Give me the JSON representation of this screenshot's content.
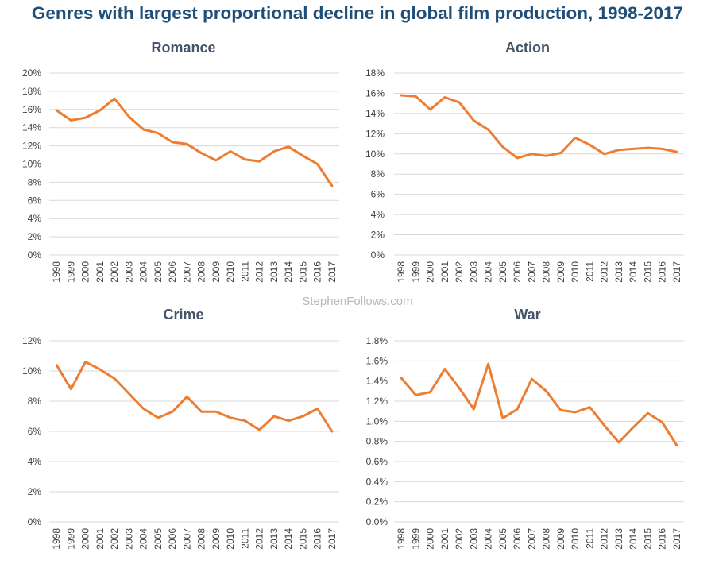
{
  "title": "Genres with largest proportional decline in global film production, 1998-2017",
  "watermark": "StephenFollows.com",
  "colors": {
    "title": "#1f4e79",
    "line": "#ed7d31",
    "grid": "#d9d9d9",
    "panel_title": "#44546a"
  },
  "chart_data": [
    {
      "type": "line",
      "title": "Romance",
      "categories": [
        "1998",
        "1999",
        "2000",
        "2001",
        "2002",
        "2003",
        "2004",
        "2005",
        "2006",
        "2007",
        "2008",
        "2009",
        "2010",
        "2011",
        "2012",
        "2013",
        "2014",
        "2015",
        "2016",
        "2017"
      ],
      "series": [
        {
          "values": [
            15.9,
            14.8,
            15.1,
            15.9,
            17.2,
            15.2,
            13.8,
            13.4,
            12.4,
            12.2,
            11.2,
            10.4,
            11.4,
            10.5,
            10.3,
            11.4,
            11.9,
            10.9,
            10.0,
            7.6
          ]
        }
      ],
      "ylim": [
        0,
        20
      ],
      "yticks": [
        "0%",
        "2%",
        "4%",
        "6%",
        "8%",
        "10%",
        "12%",
        "14%",
        "16%",
        "18%",
        "20%"
      ],
      "grid": true
    },
    {
      "type": "line",
      "title": "Action",
      "categories": [
        "1998",
        "1999",
        "2000",
        "2001",
        "2002",
        "2003",
        "2004",
        "2005",
        "2006",
        "2007",
        "2008",
        "2009",
        "2010",
        "2011",
        "2012",
        "2013",
        "2014",
        "2015",
        "2016",
        "2017"
      ],
      "series": [
        {
          "values": [
            15.8,
            15.7,
            14.4,
            15.6,
            15.1,
            13.3,
            12.4,
            10.7,
            9.6,
            10.0,
            9.8,
            10.1,
            11.6,
            10.9,
            10.0,
            10.4,
            10.5,
            10.6,
            10.5,
            10.2
          ]
        }
      ],
      "ylim": [
        0,
        18
      ],
      "yticks": [
        "0%",
        "2%",
        "4%",
        "6%",
        "8%",
        "10%",
        "12%",
        "14%",
        "16%",
        "18%"
      ],
      "grid": true
    },
    {
      "type": "line",
      "title": "Crime",
      "categories": [
        "1998",
        "1999",
        "2000",
        "2001",
        "2002",
        "2003",
        "2004",
        "2005",
        "2006",
        "2007",
        "2008",
        "2009",
        "2010",
        "2011",
        "2012",
        "2013",
        "2014",
        "2015",
        "2016",
        "2017"
      ],
      "series": [
        {
          "values": [
            10.4,
            8.8,
            10.6,
            10.1,
            9.5,
            8.5,
            7.5,
            6.9,
            7.3,
            8.3,
            7.3,
            7.3,
            6.9,
            6.7,
            6.1,
            7.0,
            6.7,
            7.0,
            7.5,
            6.0
          ]
        }
      ],
      "ylim": [
        0,
        12
      ],
      "yticks": [
        "0%",
        "2%",
        "4%",
        "6%",
        "8%",
        "10%",
        "12%"
      ],
      "grid": true
    },
    {
      "type": "line",
      "title": "War",
      "categories": [
        "1998",
        "1999",
        "2000",
        "2001",
        "2002",
        "2003",
        "2004",
        "2005",
        "2006",
        "2007",
        "2008",
        "2009",
        "2010",
        "2011",
        "2012",
        "2013",
        "2014",
        "2015",
        "2016",
        "2017"
      ],
      "series": [
        {
          "values": [
            1.43,
            1.26,
            1.29,
            1.52,
            1.33,
            1.12,
            1.57,
            1.03,
            1.12,
            1.42,
            1.3,
            1.11,
            1.09,
            1.14,
            0.96,
            0.79,
            0.94,
            1.08,
            0.99,
            0.76
          ]
        }
      ],
      "ylim": [
        0,
        1.8
      ],
      "yticks": [
        "0.0%",
        "0.2%",
        "0.4%",
        "0.6%",
        "0.8%",
        "1.0%",
        "1.2%",
        "1.4%",
        "1.6%",
        "1.8%"
      ],
      "grid": true
    }
  ]
}
